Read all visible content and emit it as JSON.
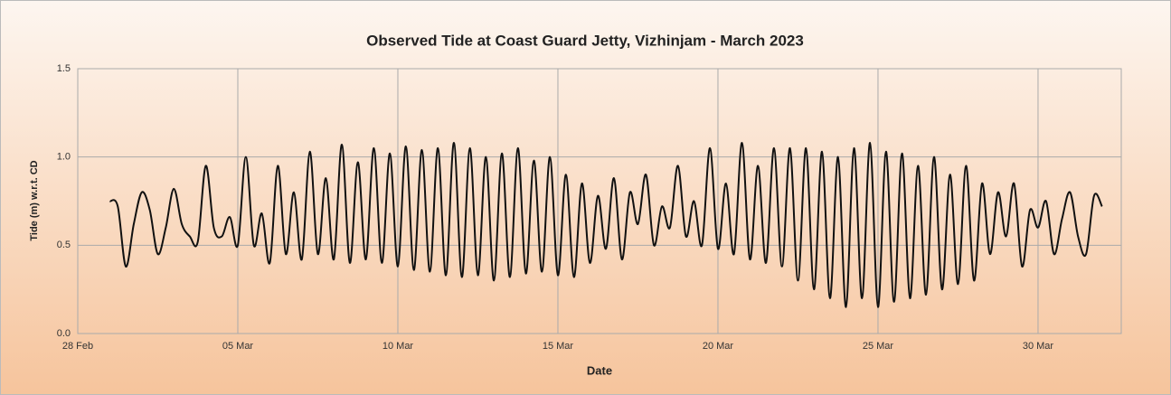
{
  "chart_data": {
    "type": "line",
    "title": "Observed Tide at Coast Guard Jetty, Vizhinjam - March 2023",
    "xlabel": "Date",
    "ylabel": "Tide (m) w.r.t. CD",
    "xlim": [
      0,
      32.6
    ],
    "xticks": [
      {
        "value": 0,
        "label": "28 Feb"
      },
      {
        "value": 5,
        "label": "05 Mar"
      },
      {
        "value": 10,
        "label": "10 Mar"
      },
      {
        "value": 15,
        "label": "15 Mar"
      },
      {
        "value": 20,
        "label": "20 Mar"
      },
      {
        "value": 25,
        "label": "25 Mar"
      },
      {
        "value": 30,
        "label": "30 Mar"
      }
    ],
    "ylim": [
      0,
      1.5
    ],
    "yticks": [
      {
        "value": 0,
        "label": "0.0"
      },
      {
        "value": 0.5,
        "label": "0.5"
      },
      {
        "value": 1,
        "label": "1.0"
      },
      {
        "value": 1.5,
        "label": "1.5"
      }
    ],
    "grid": true,
    "color": "#111111",
    "x": [
      1,
      1.25,
      1.5,
      1.75,
      2,
      2.25,
      2.5,
      2.75,
      3,
      3.25,
      3.5,
      3.75,
      4,
      4.25,
      4.5,
      4.75,
      5,
      5.25,
      5.5,
      5.75,
      6,
      6.25,
      6.5,
      6.75,
      7,
      7.25,
      7.5,
      7.75,
      8,
      8.25,
      8.5,
      8.75,
      9,
      9.25,
      9.5,
      9.75,
      10,
      10.25,
      10.5,
      10.75,
      11,
      11.25,
      11.5,
      11.75,
      12,
      12.25,
      12.5,
      12.75,
      13,
      13.25,
      13.5,
      13.75,
      14,
      14.25,
      14.5,
      14.75,
      15,
      15.25,
      15.5,
      15.75,
      16,
      16.25,
      16.5,
      16.75,
      17,
      17.25,
      17.5,
      17.75,
      18,
      18.25,
      18.5,
      18.75,
      19,
      19.25,
      19.5,
      19.75,
      20,
      20.25,
      20.5,
      20.75,
      21,
      21.25,
      21.5,
      21.75,
      22,
      22.25,
      22.5,
      22.75,
      23,
      23.25,
      23.5,
      23.75,
      24,
      24.25,
      24.5,
      24.75,
      25,
      25.25,
      25.5,
      25.75,
      26,
      26.25,
      26.5,
      26.75,
      27,
      27.25,
      27.5,
      27.75,
      28,
      28.25,
      28.5,
      28.75,
      29,
      29.25,
      29.5,
      29.75,
      30,
      30.25,
      30.5,
      30.75,
      31,
      31.25,
      31.5,
      31.75,
      32
    ],
    "values": [
      0.75,
      0.72,
      0.38,
      0.62,
      0.8,
      0.7,
      0.45,
      0.6,
      0.82,
      0.62,
      0.55,
      0.52,
      0.95,
      0.6,
      0.55,
      0.66,
      0.5,
      1.0,
      0.5,
      0.68,
      0.4,
      0.95,
      0.45,
      0.8,
      0.42,
      1.03,
      0.45,
      0.88,
      0.42,
      1.07,
      0.4,
      0.97,
      0.42,
      1.05,
      0.4,
      1.02,
      0.38,
      1.06,
      0.36,
      1.04,
      0.35,
      1.05,
      0.33,
      1.08,
      0.32,
      1.05,
      0.33,
      1.0,
      0.3,
      1.02,
      0.32,
      1.05,
      0.34,
      0.98,
      0.35,
      1.0,
      0.33,
      0.9,
      0.32,
      0.85,
      0.4,
      0.78,
      0.48,
      0.88,
      0.42,
      0.8,
      0.62,
      0.9,
      0.5,
      0.72,
      0.6,
      0.95,
      0.55,
      0.75,
      0.5,
      1.05,
      0.48,
      0.85,
      0.45,
      1.08,
      0.42,
      0.95,
      0.4,
      1.05,
      0.38,
      1.05,
      0.3,
      1.05,
      0.25,
      1.03,
      0.2,
      1.0,
      0.15,
      1.05,
      0.2,
      1.08,
      0.15,
      1.03,
      0.18,
      1.02,
      0.2,
      0.95,
      0.22,
      1.0,
      0.25,
      0.9,
      0.28,
      0.95,
      0.3,
      0.85,
      0.45,
      0.8,
      0.55,
      0.85,
      0.38,
      0.7,
      0.6,
      0.75,
      0.45,
      0.65,
      0.8,
      0.55,
      0.45,
      0.78,
      0.72
    ]
  }
}
